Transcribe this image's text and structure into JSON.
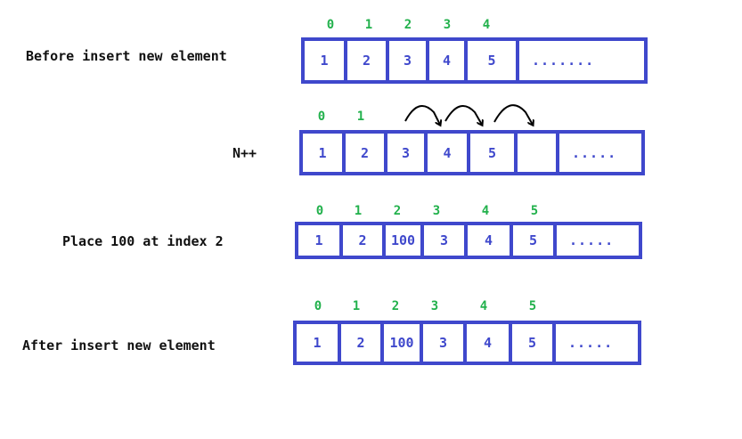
{
  "colors": {
    "border": "#3f48cc",
    "value_text": "#3f48cc",
    "index_text": "#22b14c",
    "label_text": "#111111",
    "arrow": "#000000"
  },
  "rows": [
    {
      "label": "Before insert new element",
      "indices": [
        "0",
        "1",
        "2",
        "3",
        "4"
      ],
      "cells": [
        "1",
        "2",
        "3",
        "4",
        "5",
        "......."
      ]
    },
    {
      "label": "N++",
      "indices": [
        "0",
        "1"
      ],
      "cells": [
        "1",
        "2",
        "3",
        "4",
        "5",
        "",
        "....."
      ]
    },
    {
      "label": "Place 100 at index 2",
      "indices": [
        "0",
        "1",
        "2",
        "3",
        "4",
        "5"
      ],
      "cells": [
        "1",
        "2",
        "100",
        "3",
        "4",
        "5",
        "....."
      ]
    },
    {
      "label": "After insert new element",
      "indices": [
        "0",
        "1",
        "2",
        "3",
        "4",
        "5"
      ],
      "cells": [
        "1",
        "2",
        "100",
        "3",
        "4",
        "5",
        "....."
      ]
    }
  ]
}
